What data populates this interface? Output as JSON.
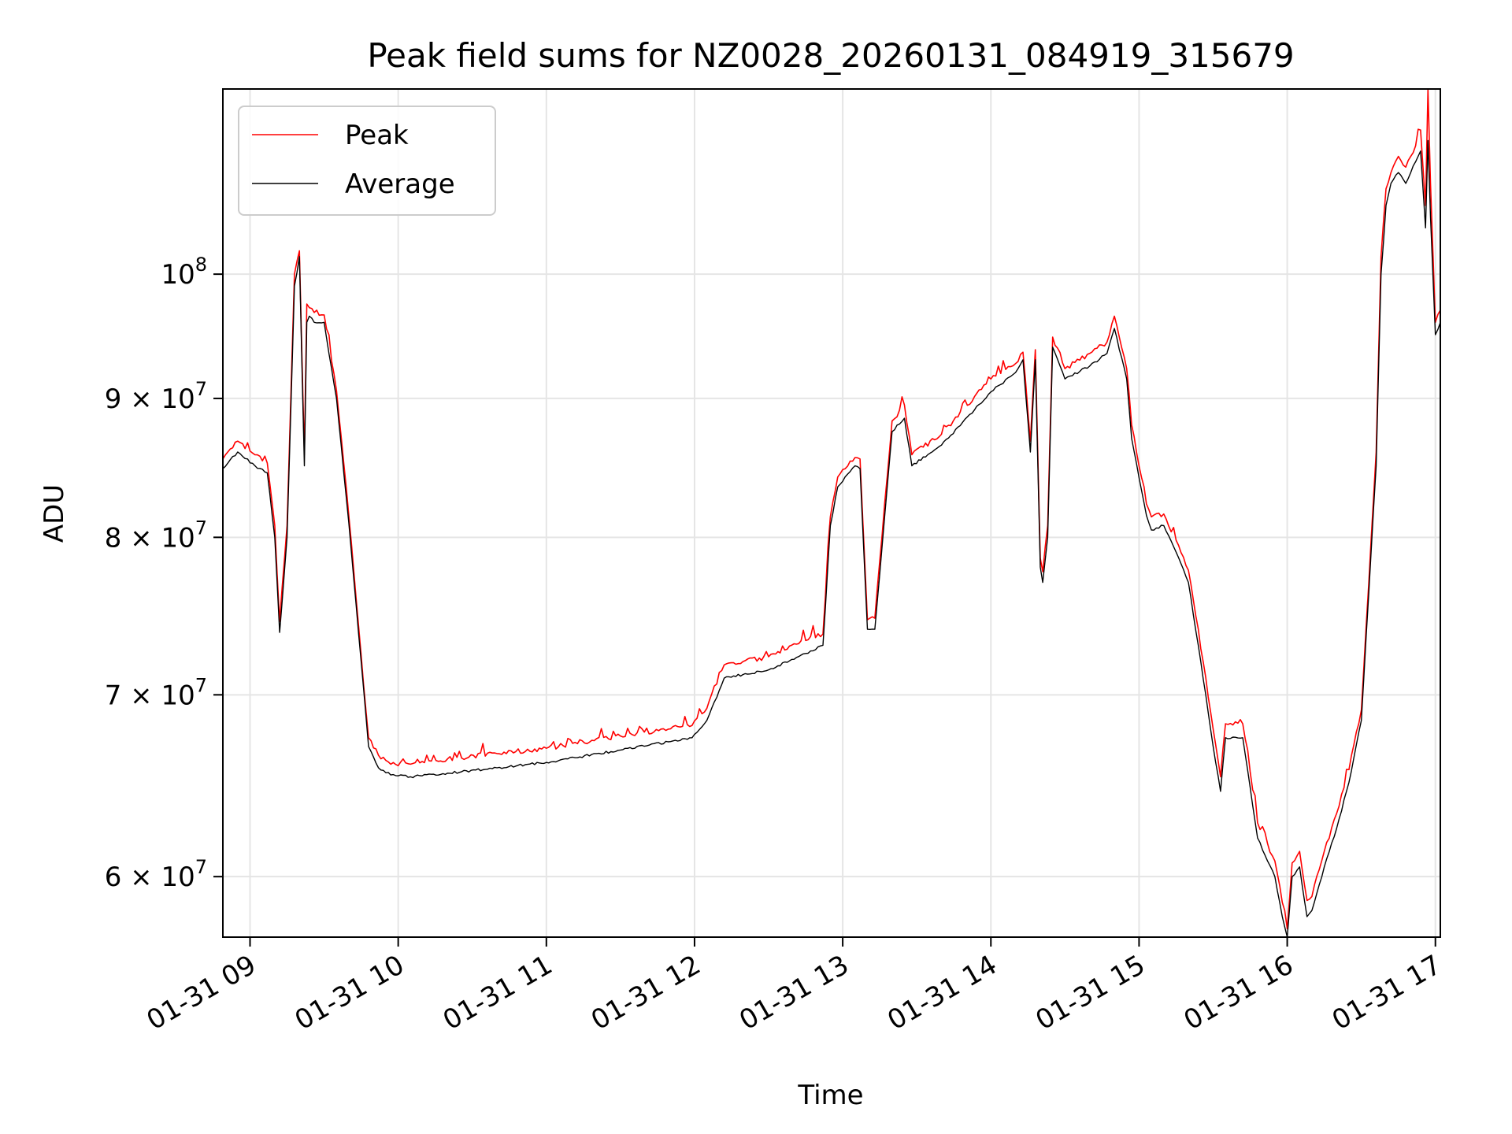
{
  "chart_data": {
    "type": "line",
    "title": "Peak field sums for NZ0028_20260131_084919_315679",
    "xlabel": "Time",
    "ylabel": "ADU",
    "y_scale": "log",
    "grid": true,
    "legend_position": "upper-left",
    "xlim": [
      "2026-01-31 08:49",
      "2026-01-31 17:02"
    ],
    "ylim": [
      57000000,
      117000000
    ],
    "x_ticks": [
      {
        "value": "2026-01-31 09:00",
        "label": "01-31 09"
      },
      {
        "value": "2026-01-31 10:00",
        "label": "01-31 10"
      },
      {
        "value": "2026-01-31 11:00",
        "label": "01-31 11"
      },
      {
        "value": "2026-01-31 12:00",
        "label": "01-31 12"
      },
      {
        "value": "2026-01-31 13:00",
        "label": "01-31 13"
      },
      {
        "value": "2026-01-31 14:00",
        "label": "01-31 14"
      },
      {
        "value": "2026-01-31 15:00",
        "label": "01-31 15"
      },
      {
        "value": "2026-01-31 16:00",
        "label": "01-31 16"
      },
      {
        "value": "2026-01-31 17:00",
        "label": "01-31 17"
      }
    ],
    "y_ticks": [
      {
        "value": 60000000,
        "mantissa": "6",
        "base": "10",
        "exp": "7"
      },
      {
        "value": 70000000,
        "mantissa": "7",
        "base": "10",
        "exp": "7"
      },
      {
        "value": 80000000,
        "mantissa": "8",
        "base": "10",
        "exp": "7"
      },
      {
        "value": 90000000,
        "mantissa": "9",
        "base": "10",
        "exp": "7"
      },
      {
        "value": 100000000,
        "mantissa": "",
        "base": "10",
        "exp": "8"
      }
    ],
    "x": [
      "2026-01-31 08:49",
      "2026-01-31 08:55",
      "2026-01-31 09:02",
      "2026-01-31 09:07",
      "2026-01-31 09:10",
      "2026-01-31 09:12",
      "2026-01-31 09:15",
      "2026-01-31 09:18",
      "2026-01-31 09:20",
      "2026-01-31 09:22",
      "2026-01-31 09:23",
      "2026-01-31 09:24",
      "2026-01-31 09:26",
      "2026-01-31 09:30",
      "2026-01-31 09:35",
      "2026-01-31 09:40",
      "2026-01-31 09:45",
      "2026-01-31 09:48",
      "2026-01-31 09:52",
      "2026-01-31 09:57",
      "2026-01-31 10:05",
      "2026-01-31 10:20",
      "2026-01-31 10:40",
      "2026-01-31 11:00",
      "2026-01-31 11:30",
      "2026-01-31 11:59",
      "2026-01-31 12:05",
      "2026-01-31 12:12",
      "2026-01-31 12:30",
      "2026-01-31 12:45",
      "2026-01-31 12:52",
      "2026-01-31 12:55",
      "2026-01-31 12:58",
      "2026-01-31 13:05",
      "2026-01-31 13:07",
      "2026-01-31 13:10",
      "2026-01-31 13:13",
      "2026-01-31 13:20",
      "2026-01-31 13:25",
      "2026-01-31 13:28",
      "2026-01-31 13:40",
      "2026-01-31 14:00",
      "2026-01-31 14:10",
      "2026-01-31 14:13",
      "2026-01-31 14:16",
      "2026-01-31 14:18",
      "2026-01-31 14:20",
      "2026-01-31 14:21",
      "2026-01-31 14:23",
      "2026-01-31 14:25",
      "2026-01-31 14:30",
      "2026-01-31 14:40",
      "2026-01-31 14:47",
      "2026-01-31 14:50",
      "2026-01-31 14:55",
      "2026-01-31 14:57",
      "2026-01-31 15:03",
      "2026-01-31 15:05",
      "2026-01-31 15:10",
      "2026-01-31 15:15",
      "2026-01-31 15:20",
      "2026-01-31 15:25",
      "2026-01-31 15:30",
      "2026-01-31 15:33",
      "2026-01-31 15:35",
      "2026-01-31 15:42",
      "2026-01-31 15:48",
      "2026-01-31 15:55",
      "2026-01-31 15:58",
      "2026-01-31 16:00",
      "2026-01-31 16:02",
      "2026-01-31 16:05",
      "2026-01-31 16:08",
      "2026-01-31 16:10",
      "2026-01-31 16:15",
      "2026-01-31 16:20",
      "2026-01-31 16:25",
      "2026-01-31 16:30",
      "2026-01-31 16:36",
      "2026-01-31 16:38",
      "2026-01-31 16:40",
      "2026-01-31 16:42",
      "2026-01-31 16:45",
      "2026-01-31 16:48",
      "2026-01-31 16:50",
      "2026-01-31 16:52",
      "2026-01-31 16:54",
      "2026-01-31 16:56",
      "2026-01-31 16:57",
      "2026-01-31 16:58",
      "2026-01-31 17:00",
      "2026-01-31 17:02"
    ],
    "series": [
      {
        "name": "Average",
        "color": "#000000",
        "values": [
          84800000,
          86000000,
          85000000,
          84500000,
          80000000,
          73800000,
          80000000,
          99000000,
          101500000,
          85000000,
          96000000,
          96500000,
          96000000,
          96000000,
          90000000,
          81000000,
          72000000,
          67000000,
          65800000,
          65400000,
          65300000,
          65500000,
          65800000,
          66100000,
          66800000,
          67500000,
          68500000,
          71000000,
          71500000,
          72500000,
          73000000,
          80800000,
          83500000,
          85000000,
          84800000,
          74000000,
          74000000,
          87500000,
          88500000,
          85000000,
          86500000,
          90500000,
          92000000,
          93000000,
          86000000,
          93000000,
          78000000,
          77000000,
          80000000,
          94000000,
          91500000,
          92500000,
          93500000,
          95500000,
          91500000,
          87000000,
          81500000,
          80500000,
          80800000,
          79000000,
          77000000,
          72000000,
          67000000,
          64500000,
          67500000,
          67500000,
          62000000,
          60000000,
          58000000,
          57000000,
          60000000,
          60500000,
          58000000,
          58300000,
          60500000,
          62500000,
          65000000,
          68500000,
          85000000,
          100000000,
          106000000,
          108000000,
          109000000,
          108000000,
          109000000,
          110000000,
          111000000,
          104000000,
          112000000,
          105000000,
          95000000,
          96000000
        ]
      },
      {
        "name": "Peak",
        "color": "#ff0000",
        "values": [
          85500000,
          86800000,
          85800000,
          85200000,
          80800000,
          74500000,
          80800000,
          100000000,
          102000000,
          85800000,
          97500000,
          97200000,
          96800000,
          96600000,
          90600000,
          81500000,
          72400000,
          67500000,
          66500000,
          66000000,
          66000000,
          66300000,
          66600000,
          66900000,
          67600000,
          68200000,
          69200000,
          71800000,
          72300000,
          73300000,
          73700000,
          81400000,
          84200000,
          85600000,
          85500000,
          74600000,
          74700000,
          88300000,
          89500000,
          85800000,
          87300000,
          91500000,
          92700000,
          93600000,
          86800000,
          93800000,
          78600000,
          77700000,
          80800000,
          94800000,
          92300000,
          93500000,
          94400000,
          96500000,
          92300000,
          88000000,
          82300000,
          81400000,
          81600000,
          79800000,
          77800000,
          72800000,
          68000000,
          65300000,
          68300000,
          68300000,
          62800000,
          60800000,
          58700000,
          57400000,
          60700000,
          61300000,
          58800000,
          59000000,
          61300000,
          63300000,
          65700000,
          69100000,
          86000000,
          101500000,
          107500000,
          109000000,
          110500000,
          109500000,
          110500000,
          111500000,
          113000000,
          106000000,
          117000000,
          108000000,
          96000000,
          97000000
        ]
      }
    ]
  }
}
